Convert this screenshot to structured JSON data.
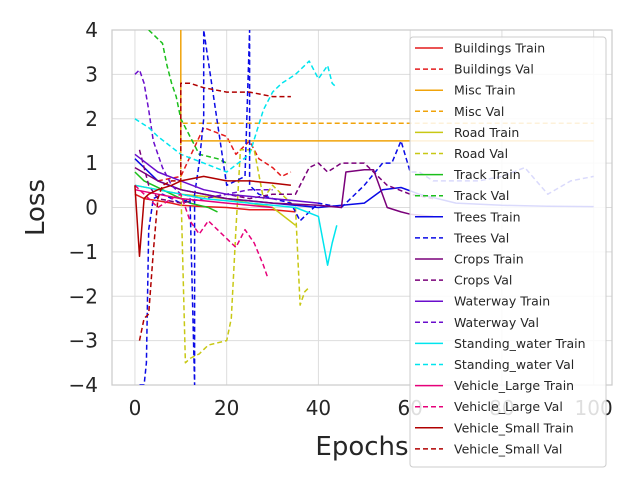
{
  "chart_data": {
    "type": "line",
    "title": "",
    "xlabel": "Epochs",
    "ylabel": "Loss",
    "xlim": [
      -5,
      104
    ],
    "ylim": [
      -4,
      4
    ],
    "xticks": [
      0,
      20,
      40,
      60,
      80,
      100
    ],
    "yticks": [
      -4,
      -3,
      -2,
      -1,
      0,
      1,
      2,
      3,
      4
    ],
    "grid": true,
    "legend_position": "right",
    "series": [
      {
        "name": "Buildings Train",
        "color": "#e41a1c",
        "dash": "solid",
        "x": [
          0,
          2,
          5,
          8,
          10,
          15,
          20,
          25,
          30,
          35
        ],
        "y": [
          0.3,
          0.2,
          0.15,
          0.1,
          0.05,
          0.02,
          0.0,
          -0.05,
          -0.05,
          -0.1
        ]
      },
      {
        "name": "Buildings Val",
        "color": "#e41a1c",
        "dash": "dashed",
        "x": [
          5,
          10,
          15,
          20,
          22,
          25,
          27,
          30,
          32,
          34
        ],
        "y": [
          0.6,
          0.7,
          1.8,
          1.6,
          1.2,
          1.5,
          1.1,
          0.9,
          0.7,
          0.8
        ]
      },
      {
        "name": "Misc Train",
        "color": "#f0a30a",
        "dash": "solid",
        "x": [
          10,
          10,
          11,
          20,
          40,
          60,
          80,
          100
        ],
        "y": [
          4.0,
          1.5,
          1.5,
          1.5,
          1.5,
          1.5,
          1.5,
          1.5
        ]
      },
      {
        "name": "Misc Val",
        "color": "#f0a30a",
        "dash": "dashed",
        "x": [
          10,
          10,
          11,
          20,
          40,
          60,
          80,
          100
        ],
        "y": [
          0.5,
          1.9,
          1.9,
          1.9,
          1.9,
          1.9,
          1.9,
          1.9
        ]
      },
      {
        "name": "Road Train",
        "color": "#c8c814",
        "dash": "solid",
        "x": [
          0,
          5,
          10,
          15,
          20,
          25,
          30,
          35
        ],
        "y": [
          0.5,
          0.4,
          0.3,
          0.25,
          0.2,
          0.1,
          0.0,
          -0.4
        ]
      },
      {
        "name": "Road Val",
        "color": "#c8c814",
        "dash": "dashed",
        "x": [
          10,
          11,
          12,
          14,
          16,
          20,
          21,
          22,
          23,
          26,
          28,
          30,
          32,
          35,
          36,
          37,
          38
        ],
        "y": [
          0.5,
          -3.5,
          -3.4,
          -3.3,
          -3.1,
          -3.0,
          -2.5,
          -0.5,
          1.3,
          1.3,
          0.2,
          0.5,
          0.3,
          0.0,
          -2.2,
          -1.9,
          -1.8
        ]
      },
      {
        "name": "Track Train",
        "color": "#1bbf1b",
        "dash": "solid",
        "x": [
          0,
          2,
          4,
          6,
          8,
          10,
          12,
          14,
          16,
          18
        ],
        "y": [
          0.8,
          0.6,
          0.5,
          0.4,
          0.3,
          0.2,
          0.1,
          0.05,
          0.0,
          -0.1
        ]
      },
      {
        "name": "Track Val",
        "color": "#1bbf1b",
        "dash": "dashed",
        "x": [
          3,
          5,
          6,
          7,
          8,
          9,
          10,
          12,
          14,
          18,
          20
        ],
        "y": [
          4.0,
          3.8,
          3.7,
          3.2,
          2.8,
          2.5,
          2.0,
          1.6,
          1.2,
          1.1,
          1.0
        ]
      },
      {
        "name": "Trees Train",
        "color": "#0a0ae6",
        "dash": "solid",
        "x": [
          0,
          5,
          10,
          20,
          30,
          40,
          50,
          54,
          58,
          62,
          70,
          80,
          90,
          100
        ],
        "y": [
          1.1,
          0.6,
          0.4,
          0.2,
          0.1,
          0.0,
          0.1,
          0.4,
          0.45,
          0.3,
          0.1,
          0.05,
          0.03,
          0.02
        ]
      },
      {
        "name": "Trees Val",
        "color": "#0a0ae6",
        "dash": "dashed",
        "x": [
          1,
          2,
          2.5,
          3,
          4,
          6,
          8,
          10,
          12,
          13,
          13,
          14,
          15,
          15,
          20,
          24,
          25,
          25,
          27,
          30,
          34,
          36,
          40,
          45,
          50,
          54,
          56,
          58,
          60,
          62,
          65,
          70,
          75,
          80,
          85,
          90,
          95,
          100
        ],
        "y": [
          -4,
          -4,
          -3.5,
          -0.5,
          0.2,
          0.3,
          0.2,
          0.1,
          0.2,
          -4,
          0.3,
          1.0,
          2.0,
          4,
          0.5,
          0.7,
          4,
          0.5,
          0.3,
          0.2,
          0.1,
          -0.3,
          0.1,
          0.0,
          0.5,
          1.0,
          1.0,
          1.5,
          0.8,
          0.8,
          0.6,
          0.6,
          0.6,
          0.7,
          0.9,
          0.3,
          0.6,
          0.7
        ]
      },
      {
        "name": "Crops Train",
        "color": "#7a007a",
        "dash": "solid",
        "x": [
          0,
          5,
          10,
          20,
          30,
          40,
          45,
          46,
          50,
          52,
          55,
          58,
          60,
          65
        ],
        "y": [
          0.9,
          0.6,
          0.4,
          0.2,
          0.1,
          0.05,
          0.0,
          0.8,
          0.85,
          0.85,
          0.0,
          -0.1,
          -0.15,
          -0.2
        ]
      },
      {
        "name": "Crops Val",
        "color": "#7a007a",
        "dash": "dashed",
        "x": [
          1,
          3,
          5,
          10,
          15,
          20,
          25,
          30,
          35,
          38,
          40,
          42,
          45,
          48,
          50,
          55,
          60,
          65
        ],
        "y": [
          1.3,
          0.5,
          0.2,
          0.1,
          0.2,
          0.3,
          0.2,
          0.3,
          0.3,
          0.9,
          1.0,
          0.8,
          1.0,
          1.0,
          1.0,
          0.5,
          0.3,
          0.2
        ]
      },
      {
        "name": "Waterway Train",
        "color": "#6a0dcc",
        "dash": "solid",
        "x": [
          0,
          5,
          10,
          15,
          20,
          25,
          30,
          35,
          40
        ],
        "y": [
          1.2,
          0.8,
          0.6,
          0.4,
          0.3,
          0.25,
          0.2,
          0.15,
          0.1
        ]
      },
      {
        "name": "Waterway Val",
        "color": "#6a0dcc",
        "dash": "dashed",
        "x": [
          0,
          1,
          2,
          3,
          4,
          5,
          6,
          8,
          10,
          15,
          20,
          25,
          30
        ],
        "y": [
          3.0,
          3.1,
          2.8,
          2.2,
          1.5,
          1.2,
          0.9,
          0.5,
          0.3,
          0.2,
          0.3,
          0.4,
          0.4
        ]
      },
      {
        "name": "Standing_water Train",
        "color": "#00e5ee",
        "dash": "solid",
        "x": [
          0,
          5,
          10,
          15,
          20,
          25,
          30,
          35,
          40,
          42,
          43,
          44
        ],
        "y": [
          0.5,
          0.4,
          0.3,
          0.2,
          0.15,
          0.1,
          0.05,
          0.0,
          -0.2,
          -1.3,
          -0.8,
          -0.4
        ]
      },
      {
        "name": "Standing_water Val",
        "color": "#00e5ee",
        "dash": "dashed",
        "x": [
          0,
          3,
          5,
          10,
          15,
          20,
          25,
          28,
          30,
          32,
          35,
          38,
          40,
          42,
          43,
          44
        ],
        "y": [
          2.0,
          1.8,
          1.6,
          1.2,
          1.0,
          0.8,
          1.2,
          2.2,
          2.6,
          2.8,
          3.0,
          3.3,
          2.9,
          3.2,
          2.8,
          2.7
        ]
      },
      {
        "name": "Vehicle_Large Train",
        "color": "#e6007a",
        "dash": "solid",
        "x": [
          0,
          5,
          10,
          15,
          20,
          25,
          30
        ],
        "y": [
          0.4,
          0.3,
          0.2,
          0.15,
          0.1,
          0.05,
          0.0
        ]
      },
      {
        "name": "Vehicle_Large Val",
        "color": "#e6007a",
        "dash": "dashed",
        "x": [
          0,
          3,
          5,
          8,
          10,
          12,
          14,
          16,
          18,
          20,
          22,
          24,
          26,
          28,
          29
        ],
        "y": [
          0.5,
          0.2,
          0.0,
          0.2,
          0.3,
          -0.3,
          -0.6,
          -0.3,
          -0.5,
          -0.7,
          -0.9,
          -0.5,
          -0.8,
          -1.3,
          -1.6
        ]
      },
      {
        "name": "Vehicle_Small Train",
        "color": "#b00000",
        "dash": "solid",
        "x": [
          0,
          1,
          2,
          3,
          5,
          8,
          10,
          15,
          20,
          25,
          30,
          34
        ],
        "y": [
          0.5,
          -1.1,
          0.2,
          0.3,
          0.4,
          0.5,
          0.6,
          0.7,
          0.6,
          0.6,
          0.55,
          0.5
        ]
      },
      {
        "name": "Vehicle_Small Val",
        "color": "#b00000",
        "dash": "dashed",
        "x": [
          1,
          2,
          3,
          4,
          5,
          6,
          8,
          10,
          10,
          12,
          15,
          20,
          25,
          30,
          34
        ],
        "y": [
          -3.0,
          -2.5,
          -2.4,
          -1.0,
          0.2,
          0.5,
          0.6,
          0.6,
          2.8,
          2.8,
          2.7,
          2.6,
          2.6,
          2.5,
          2.5
        ]
      }
    ]
  }
}
